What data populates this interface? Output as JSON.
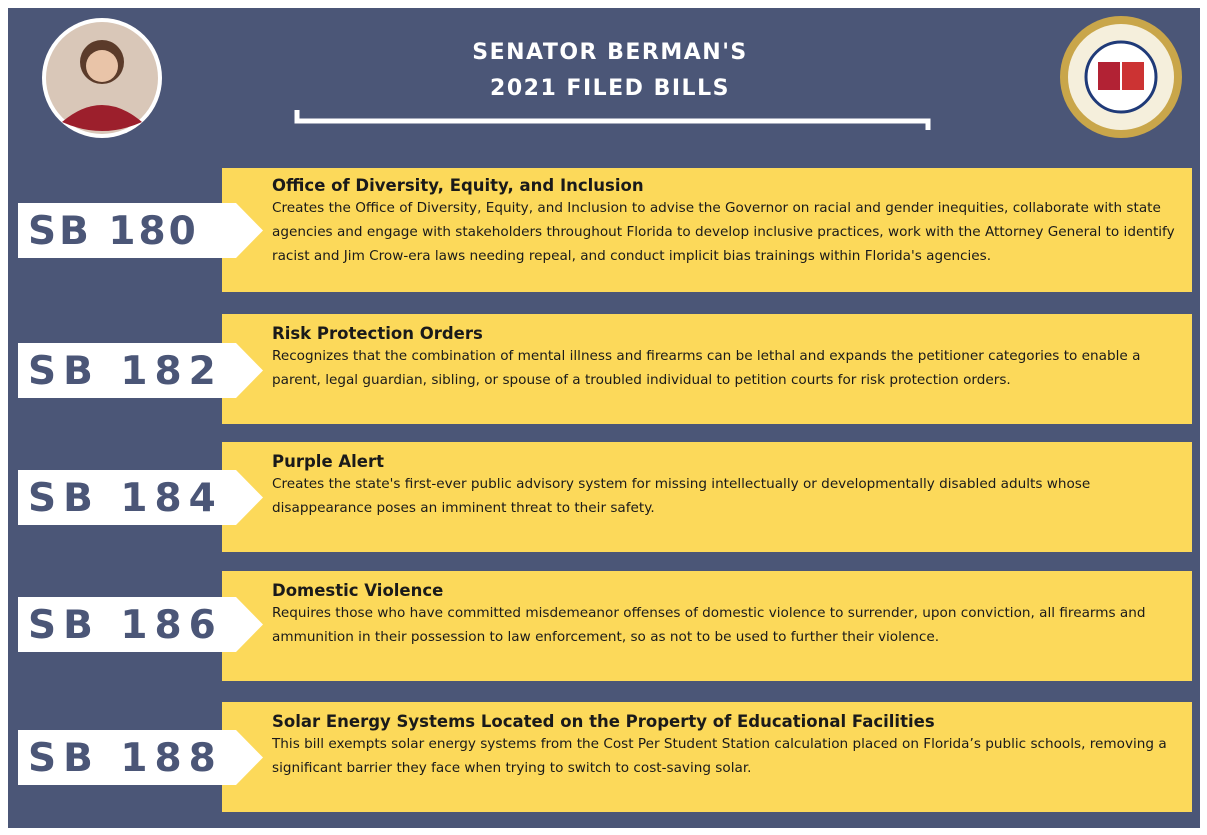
{
  "header": {
    "title_lines": [
      "SENATOR BERMAN'S",
      "2021 FILED BILLS"
    ]
  },
  "bills": [
    {
      "number": "SB 180",
      "title": "Office of Diversity, Equity, and Inclusion",
      "description": "Creates the Office of Diversity, Equity, and Inclusion to advise the Governor on racial and gender inequities, collaborate with state agencies and engage with stakeholders throughout Florida to develop inclusive practices, work with the Attorney General to identify racist and Jim Crow-era laws needing repeal, and conduct implicit bias trainings within Florida's agencies."
    },
    {
      "number": "SB 182",
      "title": "Risk Protection Orders",
      "description": "Recognizes that the combination of mental illness and firearms can be lethal and expands the petitioner categories to enable a parent, legal guardian, sibling, or spouse of a troubled individual to petition courts for risk protection orders."
    },
    {
      "number": "SB 184",
      "title": "Purple Alert",
      "description": "Creates the state's first-ever public advisory system for missing intellectually or developmentally disabled adults whose disappearance poses an imminent threat to their safety."
    },
    {
      "number": "SB 186",
      "title": "Domestic Violence",
      "description": "Requires those who have committed misdemeanor offenses of domestic violence to surrender, upon conviction, all firearms and ammunition in their possession to law enforcement, so as not to be used to further their violence."
    },
    {
      "number": "SB 188",
      "title": "Solar Energy Systems Located on the Property of Educational Facilities",
      "description": "This bill exempts solar energy systems from the Cost Per Student Station calculation placed on Florida’s public schools, removing a significant barrier they face when trying to switch to cost-saving solar."
    }
  ]
}
